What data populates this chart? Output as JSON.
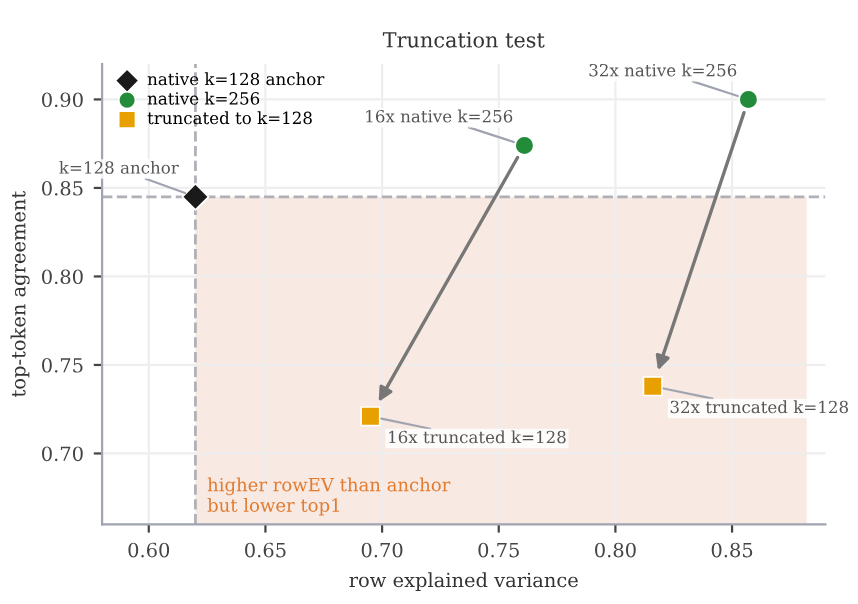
{
  "chart_data": {
    "type": "scatter",
    "title": "Truncation test",
    "xlabel": "row explained variance",
    "ylabel": "top-token agreement",
    "series": [
      {
        "name": "native k=128 anchor",
        "color": "#1a1a1a",
        "marker": "diamond",
        "x": [
          0.62
        ],
        "values": [
          0.845
        ]
      },
      {
        "name": "native k=256",
        "color": "#238b3a",
        "marker": "circle",
        "x": [
          0.761,
          0.857
        ],
        "values": [
          0.874,
          0.9
        ]
      },
      {
        "name": "truncated to k=128",
        "color": "#e8a000",
        "marker": "square",
        "x": [
          0.695,
          0.816
        ],
        "values": [
          0.721,
          0.738
        ]
      }
    ],
    "xlim": [
      0.58,
      0.89
    ],
    "ylim": [
      0.66,
      0.92
    ],
    "xticks": [
      {
        "value": 0.6,
        "label": "0.60"
      },
      0.65,
      {
        "value": 0.7,
        "label": "0.70"
      },
      0.75,
      {
        "value": 0.8,
        "label": "0.80"
      },
      0.85
    ],
    "yticks": [
      {
        "value": 0.7,
        "label": "0.70"
      },
      0.75,
      {
        "value": 0.8,
        "label": "0.80"
      },
      0.85,
      {
        "value": 0.9,
        "label": "0.90"
      }
    ],
    "ref_lines": [
      {
        "axis": "y",
        "value": 0.845,
        "color": "#b0b0b8",
        "line_style": "dashed"
      },
      {
        "axis": "x",
        "value": 0.62,
        "color": "#b0b0b8",
        "line_style": "dashed"
      }
    ],
    "bands": [
      {
        "axis": "x",
        "from": 0.62,
        "to": 0.882,
        "label": "higher rowEV than anchor\nbut lower top1",
        "color": "#f8e9e2"
      }
    ],
    "annotations": [
      {
        "text": "k=128 anchor",
        "x": 0.62,
        "y": 0.845
      },
      {
        "text": "16x native k=256",
        "x": 0.761,
        "y": 0.874
      },
      {
        "text": "32x native k=256",
        "x": 0.857,
        "y": 0.9
      },
      {
        "text": "16x truncated k=128",
        "x": 0.695,
        "y": 0.721
      },
      {
        "text": "32x truncated k=128",
        "x": 0.816,
        "y": 0.738
      }
    ],
    "grid": true,
    "legend": "top left"
  }
}
